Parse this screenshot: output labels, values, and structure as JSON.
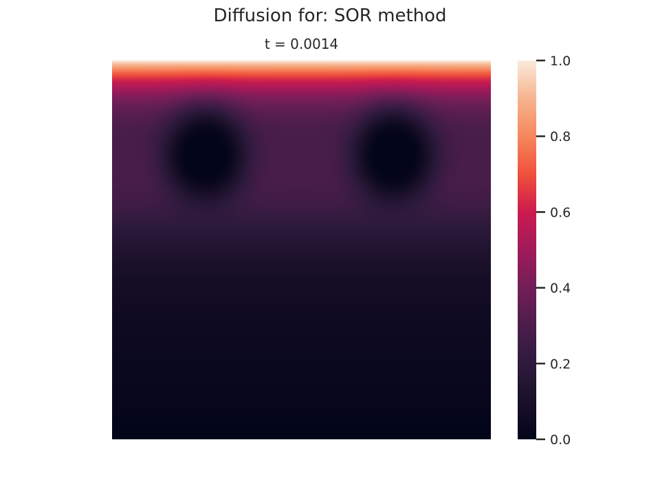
{
  "chart_data": {
    "type": "heatmap",
    "title": "Diffusion for: SOR method",
    "subtitle": "t = 0.0014",
    "colormap": "rocket",
    "colorbar": {
      "min": 0.0,
      "max": 1.0,
      "ticks": [
        0.0,
        0.2,
        0.4,
        0.6,
        0.8,
        1.0
      ],
      "tick_labels": [
        "0.0",
        "0.2",
        "0.4",
        "0.6",
        "0.8",
        "1.0"
      ],
      "position": "right"
    },
    "x_axis_visible": false,
    "y_axis_visible": false,
    "boundary_top_value": 1.0,
    "boundary_bottom_value": 0.0,
    "sinks": [
      {
        "x": 0.245,
        "y": 0.25,
        "value": 0.0
      },
      {
        "x": 0.745,
        "y": 0.25,
        "value": 0.0
      }
    ]
  }
}
